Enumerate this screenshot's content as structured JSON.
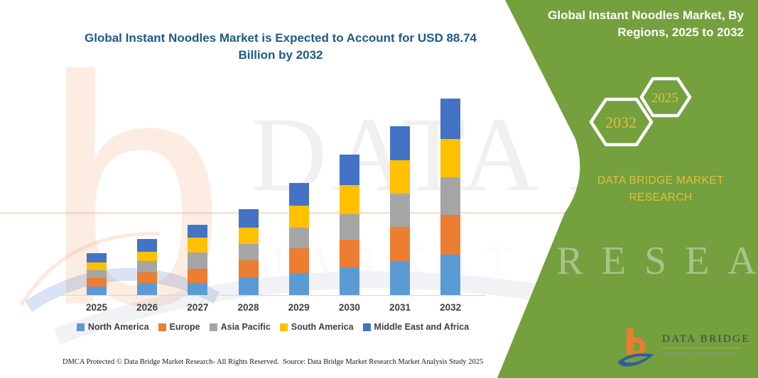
{
  "main_title": "Global Instant Noodles Market is Expected to Account for USD 88.74 Billion by 2032",
  "panel": {
    "bg_color": "#74A03E",
    "gold_color": "#E2BE3D",
    "title": "Global Instant Noodles Market, By Regions, 2025 to 2032",
    "hex_large_year": "2032",
    "hex_small_year": "2025",
    "brand_line1": "DATA BRIDGE MARKET",
    "brand_line2": "RESEARCH"
  },
  "logo": {
    "name": "DATA BRIDGE",
    "sub": "MARKET RESEARCH"
  },
  "watermarks": {
    "big_text": "DATA BRI",
    "wide_text": "MARKET RESEARCH",
    "letter": "b"
  },
  "footer": {
    "left": "DMCA Protected © Data Bridge Market Research-  All Rights Reserved.",
    "right": "Source: Data Bridge Market Research  Market Analysis Study 2025"
  },
  "chart_data": {
    "type": "bar",
    "stacked": true,
    "unit": "USD Billion",
    "title": "Global Instant Noodles Market is Expected to Account for USD 88.74 Billion by 2032",
    "categories": [
      "2025",
      "2026",
      "2027",
      "2028",
      "2029",
      "2030",
      "2031",
      "2032"
    ],
    "series": [
      {
        "name": "North America",
        "color": "#5B9BD5",
        "values": [
          3.8,
          5.4,
          5.4,
          8.0,
          9.9,
          12.5,
          15.4,
          18.3
        ]
      },
      {
        "name": "Europe",
        "color": "#ED7D31",
        "values": [
          3.8,
          4.8,
          6.4,
          7.7,
          11.2,
          12.5,
          15.4,
          17.9
        ]
      },
      {
        "name": "Asia Pacific",
        "color": "#A5A5A5",
        "values": [
          3.5,
          5.1,
          7.4,
          7.4,
          9.3,
          11.5,
          15.0,
          17.0
        ]
      },
      {
        "name": "South America",
        "color": "#FFC000",
        "values": [
          3.5,
          4.2,
          6.7,
          7.4,
          9.9,
          13.1,
          15.0,
          17.3
        ]
      },
      {
        "name": "Middle East and Africa",
        "color": "#4472C4",
        "values": [
          4.2,
          5.8,
          5.8,
          8.3,
          10.3,
          13.8,
          15.4,
          18.24
        ]
      }
    ],
    "totals": [
      18.8,
      25.3,
      31.7,
      38.8,
      50.6,
      63.4,
      76.2,
      88.74
    ],
    "ylim": [
      0,
      88.74
    ],
    "grid": false,
    "legend_position": "bottom",
    "axis_labels_hidden": true
  }
}
